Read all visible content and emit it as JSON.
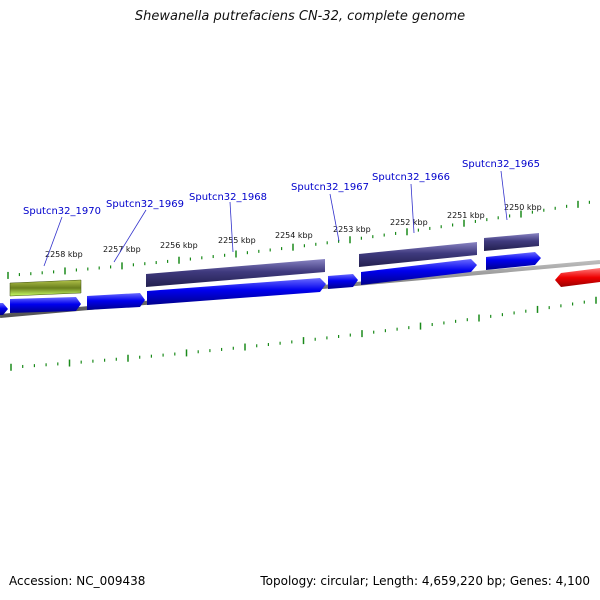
{
  "title": "Shewanella putrefaciens CN-32, complete genome",
  "footer": {
    "accession": "Accession: NC_009438",
    "topology": "Topology: circular; Length: 4,659,220 bp; Genes: 4,100"
  },
  "colors": {
    "forward_cds": "#0000ee",
    "reverse_cds": "#3f3a7e",
    "rna_gene": "#6a7f1d",
    "highlight_gene": "#ee0000",
    "backbone": "#777777",
    "ticks": "#1a8a1a",
    "gene_label": "#0000cc"
  },
  "ruler": {
    "labels": [
      "2258 kbp",
      "2257 kbp",
      "2256 kbp",
      "2255 kbp",
      "2254 kbp",
      "2253 kbp",
      "2252 kbp",
      "2251 kbp",
      "2250 kbp"
    ]
  },
  "genes": [
    {
      "label": "Sputcn32_1970",
      "strand": "reverse",
      "type": "rna"
    },
    {
      "label": "Sputcn32_1969",
      "strand": "forward",
      "type": "cds"
    },
    {
      "label": "Sputcn32_1968",
      "strand": "reverse",
      "type": "cds"
    },
    {
      "label": "Sputcn32_1967",
      "strand": "forward",
      "type": "cds"
    },
    {
      "label": "Sputcn32_1966",
      "strand": "reverse",
      "type": "cds"
    },
    {
      "label": "Sputcn32_1965",
      "strand": "reverse",
      "type": "cds"
    }
  ]
}
